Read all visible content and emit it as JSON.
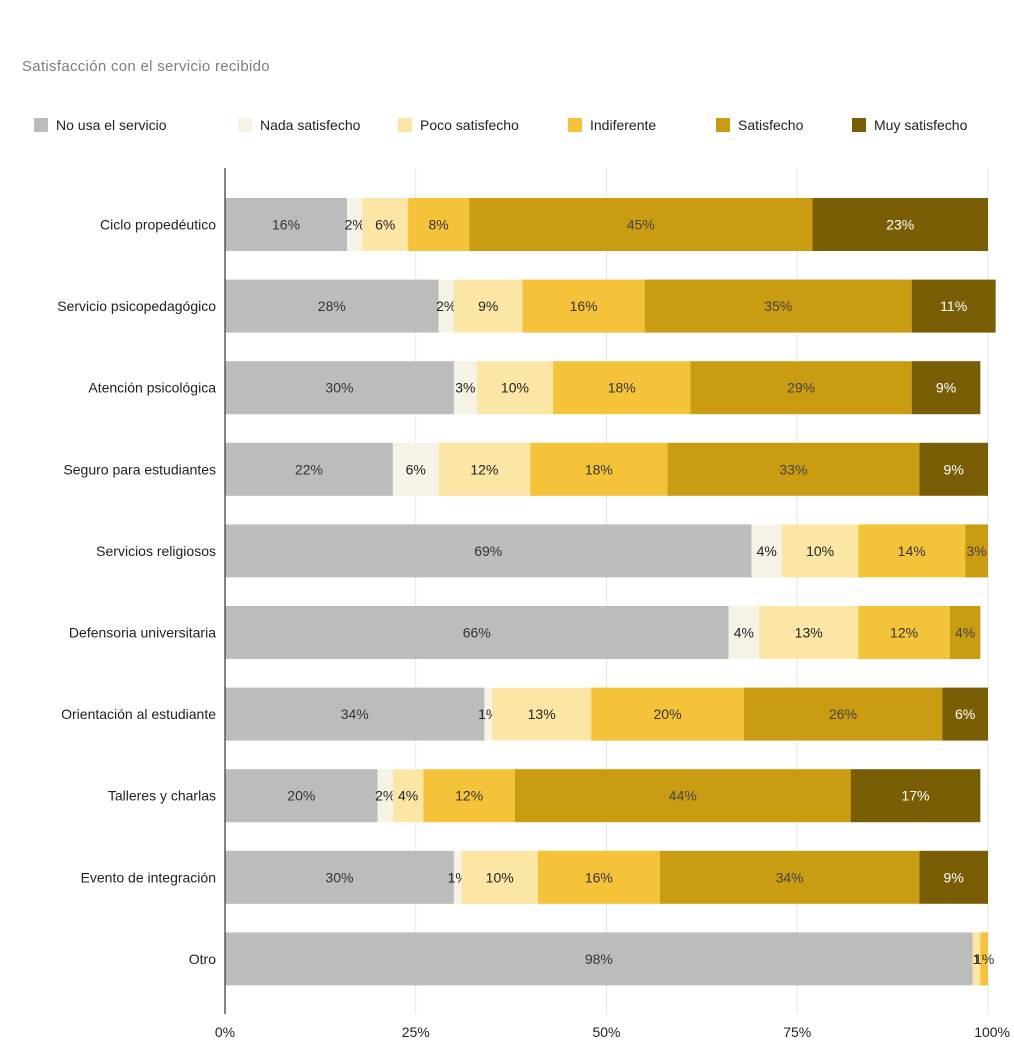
{
  "chart_data": {
    "type": "bar",
    "orientation": "horizontal",
    "stacked": "percent",
    "title": "Satisfacción con el servicio recibido",
    "categories": [
      "Ciclo propedéutico",
      "Servicio psicopedagógico",
      "Atención psicológica",
      "Seguro para estudiantes",
      "Servicios religiosos",
      "Defensoria universitaria",
      "Orientación al estudiante",
      "Talleres y charlas",
      "Evento de integración",
      "Otro"
    ],
    "series": [
      {
        "name": "No usa el servicio",
        "color": "#bcbcbc",
        "text_color": "#333333",
        "values": [
          16,
          28,
          30,
          22,
          69,
          66,
          34,
          20,
          30,
          98
        ]
      },
      {
        "name": "Nada satisfecho",
        "color": "#f7f2e6",
        "text_color": "#222222",
        "values": [
          2,
          2,
          3,
          6,
          4,
          4,
          1,
          2,
          1,
          0
        ]
      },
      {
        "name": "Poco satisfecho",
        "color": "#fbe6a6",
        "text_color": "#222222",
        "values": [
          6,
          9,
          10,
          12,
          10,
          13,
          13,
          4,
          10,
          1
        ]
      },
      {
        "name": "Indiferente",
        "color": "#f4c339",
        "text_color": "#333333",
        "values": [
          8,
          16,
          18,
          18,
          14,
          12,
          20,
          12,
          16,
          1
        ]
      },
      {
        "name": "Satisfecho",
        "color": "#c99c12",
        "text_color": "#444444",
        "values": [
          45,
          35,
          29,
          33,
          3,
          4,
          26,
          44,
          34,
          0
        ]
      },
      {
        "name": "Muy satisfecho",
        "color": "#7a5e05",
        "text_color": "#ffffff",
        "values": [
          23,
          11,
          9,
          9,
          0,
          0,
          6,
          17,
          9,
          0
        ]
      }
    ],
    "value_labels": [
      [
        "16%",
        "2%",
        "6%",
        "8%",
        "45%",
        "23%"
      ],
      [
        "28%",
        "2%",
        "9%",
        "16%",
        "35%",
        "11%"
      ],
      [
        "30%",
        "3%",
        "10%",
        "18%",
        "29%",
        "9%"
      ],
      [
        "22%",
        "6%",
        "12%",
        "18%",
        "33%",
        "9%"
      ],
      [
        "69%",
        "4%",
        "10%",
        "14%",
        "3%",
        ""
      ],
      [
        "66%",
        "4%",
        "13%",
        "12%",
        "4%",
        ""
      ],
      [
        "34%",
        "1%",
        "13%",
        "20%",
        "26%",
        "6%"
      ],
      [
        "20%",
        "2%",
        "4%",
        "12%",
        "44%",
        "17%"
      ],
      [
        "30%",
        "1%",
        "10%",
        "16%",
        "34%",
        "9%"
      ],
      [
        "98%",
        "",
        "1",
        "1%",
        "",
        ""
      ]
    ],
    "xlim": [
      0,
      100
    ],
    "x_ticks": [
      "0%",
      "25%",
      "50%",
      "75%",
      "100%"
    ],
    "grid": true,
    "legend_position": "top"
  }
}
